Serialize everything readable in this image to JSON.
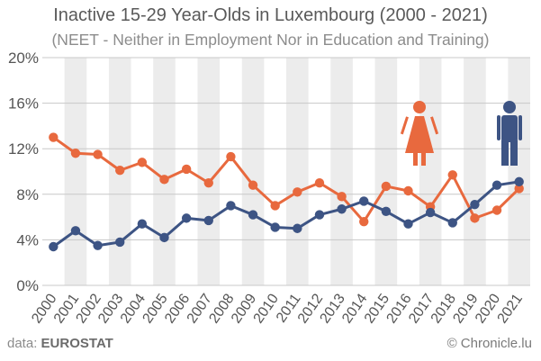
{
  "title": "Inactive 15-29 Year-Olds in Luxembourg (2000 - 2021)",
  "subtitle": "(NEET - Neither in Employment Nor in Education and Training)",
  "source_prefix": "data:",
  "source_name": "EUROSTAT",
  "credit": "© Chronicle.lu",
  "icons": {
    "female": "female-person-icon",
    "male": "male-person-icon"
  },
  "colors": {
    "female": "#e8693e",
    "male": "#3d5484",
    "band": "#ececec"
  },
  "chart_data": {
    "type": "line",
    "title": "Inactive 15-29 Year-Olds in Luxembourg (2000 - 2021)",
    "subtitle": "(NEET - Neither in Employment Nor in Education and Training)",
    "x": [
      "2000",
      "2001",
      "2002",
      "2003",
      "2004",
      "2005",
      "2006",
      "2007",
      "2008",
      "2009",
      "2010",
      "2011",
      "2012",
      "2013",
      "2014",
      "2015",
      "2016",
      "2017",
      "2018",
      "2019",
      "2020",
      "2021"
    ],
    "yticks": [
      "0%",
      "4%",
      "8%",
      "12%",
      "16%",
      "20%"
    ],
    "ylim": [
      0,
      20
    ],
    "grid": true,
    "series": [
      {
        "values": [
          13.0,
          11.6,
          11.5,
          10.1,
          10.8,
          9.3,
          10.2,
          9.0,
          11.3,
          8.8,
          7.0,
          8.2,
          9.0,
          7.8,
          5.6,
          8.7,
          8.3,
          6.9,
          9.7,
          5.9,
          6.6,
          8.5
        ]
      },
      {
        "values": [
          3.4,
          4.8,
          3.5,
          3.8,
          5.4,
          4.2,
          5.9,
          5.7,
          7.0,
          6.2,
          5.1,
          5.0,
          6.2,
          6.7,
          7.4,
          6.5,
          5.4,
          6.4,
          5.5,
          7.1,
          8.8,
          9.1
        ]
      }
    ]
  }
}
